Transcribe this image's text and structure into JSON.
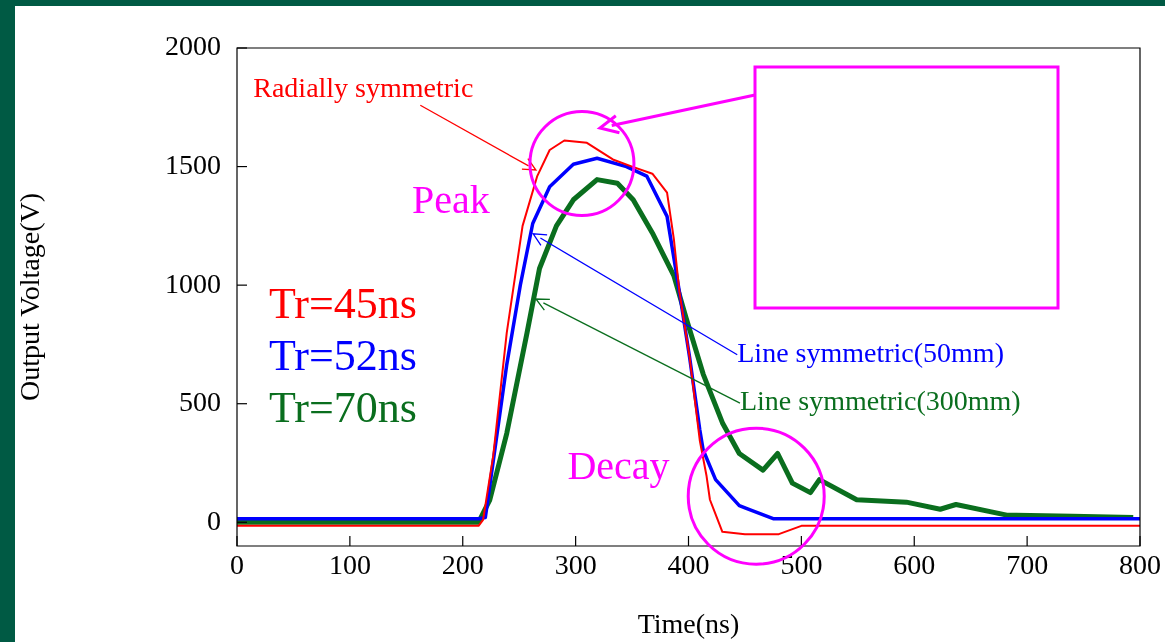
{
  "chart_data": {
    "type": "line",
    "xlabel": "Time(ns)",
    "ylabel": "Output Voltage(V)",
    "xlim": [
      0,
      800
    ],
    "xticks": [
      0,
      100,
      200,
      300,
      400,
      500,
      600,
      700,
      800
    ],
    "ylim": [
      -100,
      2000
    ],
    "yticks": [
      0,
      500,
      1000,
      1500,
      2000
    ],
    "grid": false,
    "legend": "left",
    "marker": "none",
    "line_style": "solid",
    "series": [
      {
        "name": "Tr=45ns",
        "color": "#ff0000",
        "x": [
          0,
          100,
          200,
          214,
          218,
          227,
          239,
          253,
          266,
          277,
          290,
          310,
          333,
          350,
          368,
          381,
          387,
          392,
          401,
          410,
          416,
          419,
          430,
          450,
          480,
          500,
          600,
          700,
          800
        ],
        "values": [
          -15,
          -15,
          -15,
          -15,
          10,
          280,
          800,
          1250,
          1460,
          1570,
          1610,
          1600,
          1530,
          1500,
          1470,
          1390,
          1195,
          970,
          695,
          345,
          195,
          95,
          -40,
          -50,
          -50,
          -15,
          -15,
          -15,
          -15
        ]
      },
      {
        "name": "Tr=52ns",
        "color": "#0000ff",
        "x": [
          0,
          100,
          200,
          214,
          220,
          239,
          251,
          262,
          277,
          298,
          319,
          345,
          363,
          381,
          392,
          401,
          410,
          413,
          424,
          445,
          475,
          500,
          600,
          700,
          800
        ],
        "values": [
          15,
          15,
          15,
          15,
          20,
          665,
          1000,
          1260,
          1415,
          1510,
          1535,
          1500,
          1460,
          1290,
          970,
          695,
          390,
          305,
          180,
          70,
          15,
          15,
          15,
          15,
          15
        ]
      },
      {
        "name": "Tr=70ns",
        "color": "#0a6e1e",
        "x": [
          0,
          100,
          200,
          214,
          224,
          239,
          257,
          268,
          283,
          298,
          319,
          337,
          351,
          368,
          387,
          398,
          413,
          430,
          445,
          466,
          479,
          492,
          508,
          516,
          549,
          593,
          623,
          637,
          682,
          740,
          794
        ],
        "values": [
          0,
          0,
          0,
          0,
          95,
          375,
          800,
          1070,
          1250,
          1360,
          1445,
          1430,
          1360,
          1220,
          1040,
          860,
          625,
          420,
          290,
          220,
          290,
          165,
          125,
          180,
          95,
          85,
          55,
          75,
          30,
          25,
          20
        ]
      }
    ],
    "annotations": [
      "Radially symmetric",
      "Line symmetric(50mm)",
      "Line symmetric(300mm)",
      "Peak",
      "Decay"
    ]
  }
}
